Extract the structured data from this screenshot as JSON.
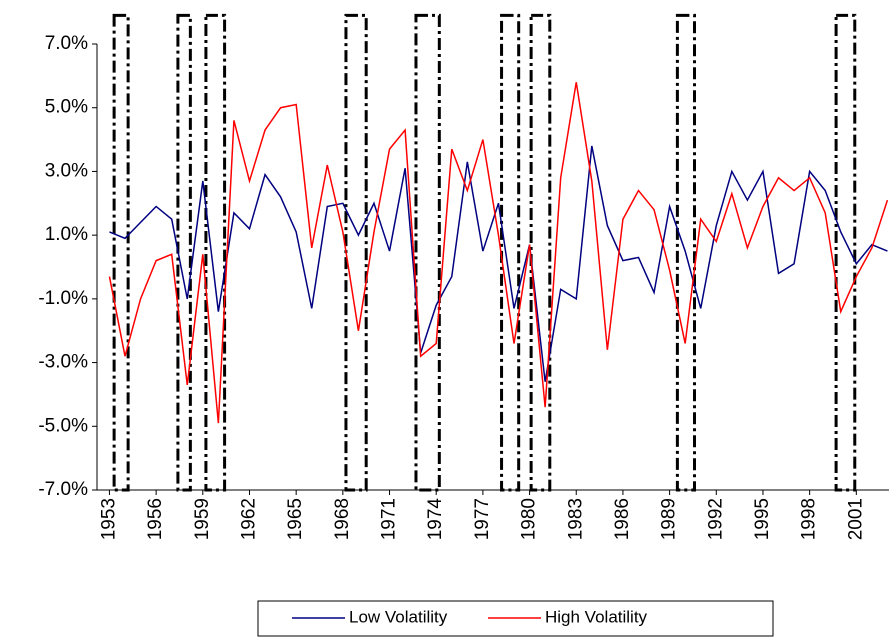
{
  "chart_data": {
    "type": "line",
    "x": [
      1953,
      1954,
      1955,
      1956,
      1957,
      1958,
      1959,
      1960,
      1961,
      1962,
      1963,
      1964,
      1965,
      1966,
      1967,
      1968,
      1969,
      1970,
      1971,
      1972,
      1973,
      1974,
      1975,
      1976,
      1977,
      1978,
      1979,
      1980,
      1981,
      1982,
      1983,
      1984,
      1985,
      1986,
      1987,
      1988,
      1989,
      1990,
      1991,
      1992,
      1993,
      1994,
      1995,
      1996,
      1997,
      1998,
      1999,
      2000,
      2001,
      2002,
      2003
    ],
    "series": [
      {
        "name": "Low Volatility",
        "color": "#000080",
        "values": [
          1.1,
          0.9,
          1.4,
          1.9,
          1.5,
          -1.0,
          2.7,
          -1.4,
          1.7,
          1.2,
          2.9,
          2.2,
          1.1,
          -1.3,
          1.9,
          2.0,
          1.0,
          2.0,
          0.5,
          3.1,
          -2.7,
          -1.2,
          -0.3,
          3.3,
          0.5,
          2.0,
          -1.3,
          0.7,
          -3.6,
          -0.7,
          -1.0,
          3.8,
          1.3,
          0.2,
          0.3,
          -0.8,
          1.9,
          0.5,
          -1.3,
          1.3,
          3.0,
          2.1,
          3.0,
          -0.2,
          0.1,
          3.0,
          2.4,
          1.1,
          0.1,
          0.7,
          0.5
        ]
      },
      {
        "name": "High Volatility",
        "color": "#ff0000",
        "values": [
          -0.3,
          -2.8,
          -1.0,
          0.2,
          0.4,
          -3.7,
          0.4,
          -4.9,
          4.6,
          2.7,
          4.3,
          5.0,
          5.1,
          0.6,
          3.2,
          1.1,
          -2.0,
          1.1,
          3.7,
          4.3,
          -2.8,
          -2.4,
          3.7,
          2.4,
          4.0,
          1.0,
          -2.4,
          0.7,
          -4.4,
          2.8,
          5.8,
          2.7,
          -2.6,
          1.5,
          2.4,
          1.8,
          -0.1,
          -2.4,
          1.5,
          0.8,
          2.3,
          0.6,
          1.9,
          2.8,
          2.4,
          2.8,
          1.7,
          -1.4,
          -0.3,
          0.6,
          2.1
        ]
      }
    ],
    "xlim": [
      1952.2,
      2003.1
    ],
    "xticks": [
      1953,
      1956,
      1959,
      1962,
      1965,
      1968,
      1971,
      1974,
      1977,
      1980,
      1983,
      1986,
      1989,
      1992,
      1995,
      1998,
      2001
    ],
    "ylim": [
      -7,
      7
    ],
    "yticks": [
      {
        "value": -7,
        "label": "-7.0%"
      },
      {
        "value": -5,
        "label": "-5.0%"
      },
      {
        "value": -3,
        "label": "-3.0%"
      },
      {
        "value": -1,
        "label": "-1.0%"
      },
      {
        "value": 1,
        "label": "1.0%"
      },
      {
        "value": 3,
        "label": "3.0%"
      },
      {
        "value": 5,
        "label": "5.0%"
      },
      {
        "value": 7,
        "label": "7.0%"
      }
    ],
    "bands": {
      "ymax": 7.9,
      "ranges": [
        [
          1953.3,
          1954.2
        ],
        [
          1957.4,
          1958.2
        ],
        [
          1959.2,
          1960.4
        ],
        [
          1968.2,
          1969.5
        ],
        [
          1972.7,
          1974.2
        ],
        [
          1978.2,
          1979.3
        ],
        [
          1980.1,
          1981.3
        ],
        [
          1989.5,
          1990.6
        ],
        [
          1999.7,
          2000.9
        ]
      ]
    },
    "legend": "bottom",
    "grid": false
  }
}
